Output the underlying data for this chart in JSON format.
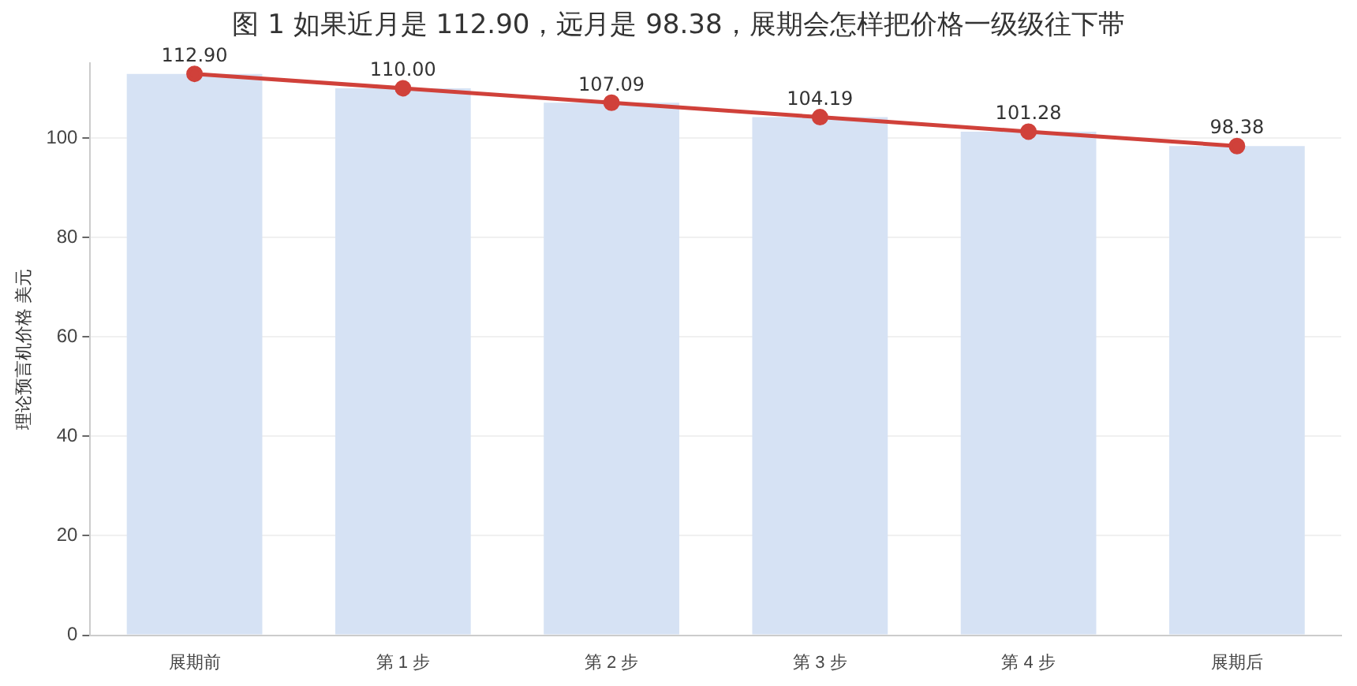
{
  "chart_data": {
    "type": "bar",
    "title": "图 1  如果近月是 112.90，远月是 98.38，展期会怎样把价格一级级往下带",
    "ylabel": "理论预言机价格 美元",
    "categories": [
      "展期前",
      "第 1 步",
      "第 2 步",
      "第 3 步",
      "第 4 步",
      "展期后"
    ],
    "series": [
      {
        "color": "#d6e2f4",
        "values": [
          112.9,
          110.0,
          107.09,
          104.19,
          101.28,
          98.38
        ]
      },
      {
        "type": "line",
        "color": "#d0413a",
        "values": [
          112.9,
          110.0,
          107.09,
          104.19,
          101.28,
          98.38
        ],
        "value_labels": [
          "112.90",
          "110.00",
          "107.09",
          "104.19",
          "101.28",
          "98.38"
        ]
      }
    ],
    "ylim": [
      0,
      115
    ],
    "yticks": [
      0,
      20,
      40,
      60,
      80,
      100
    ],
    "grid": "y",
    "legend": false,
    "marker": "circle",
    "line_style": "solid"
  }
}
